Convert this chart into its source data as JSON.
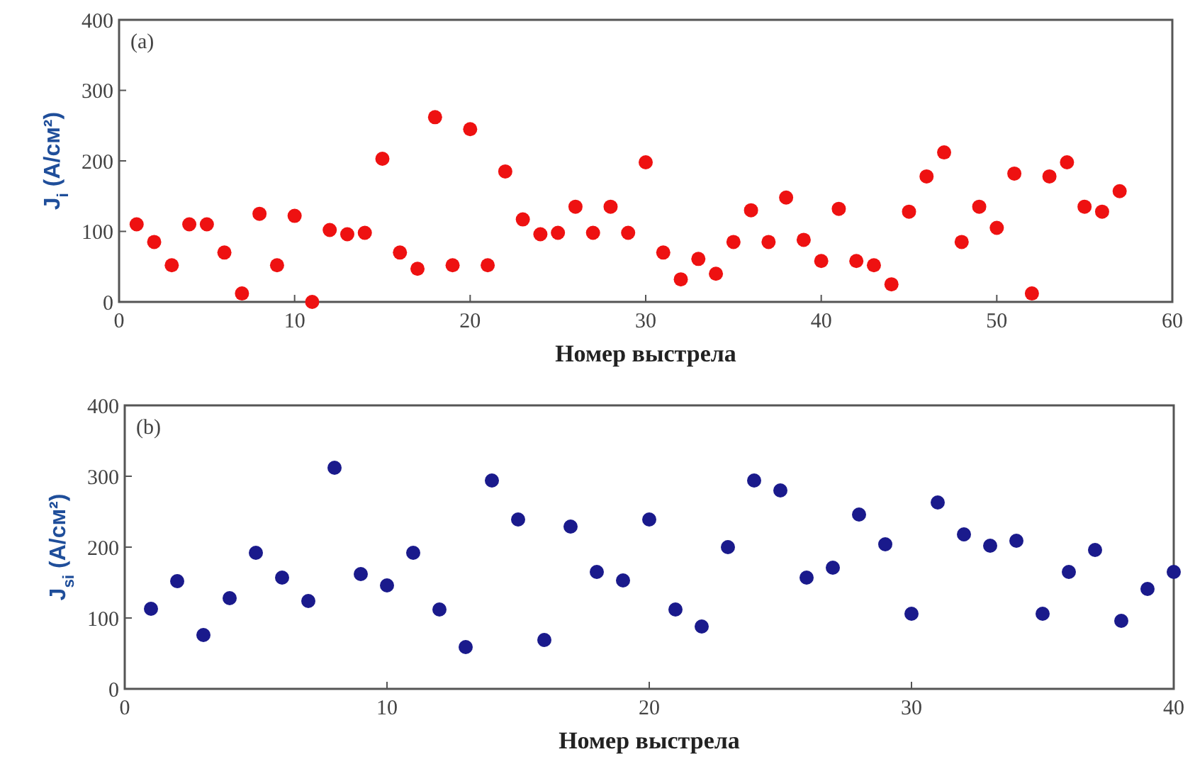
{
  "chart_data": [
    {
      "type": "scatter",
      "annotations": [
        "(a)"
      ],
      "xlabel": "Номер выстрела",
      "ylabel": "J$_{i}$ (A/см²)",
      "xlim": [
        0,
        60
      ],
      "xticks": [
        0,
        10,
        20,
        30,
        40,
        50,
        60
      ],
      "ylim": [
        0,
        400
      ],
      "yticks": [
        0,
        100,
        200,
        300,
        400
      ],
      "marker": "circle",
      "grid": false,
      "x": [
        1,
        2,
        3,
        4,
        5,
        6,
        7,
        8,
        9,
        10,
        11,
        12,
        13,
        14,
        15,
        16,
        17,
        18,
        19,
        20,
        21,
        22,
        23,
        24,
        25,
        26,
        27,
        28,
        29,
        30,
        31,
        32,
        33,
        34,
        35,
        36,
        37,
        38,
        39,
        40,
        41,
        42,
        43,
        44,
        45,
        46,
        47,
        48,
        49,
        50,
        51,
        52,
        53,
        54,
        55,
        56,
        57
      ],
      "series": [
        {
          "color": "#ee1111",
          "values": [
            110,
            85,
            52,
            110,
            110,
            70,
            12,
            125,
            52,
            122,
            0,
            102,
            96,
            98,
            203,
            70,
            47,
            262,
            52,
            245,
            52,
            185,
            117,
            96,
            98,
            135,
            98,
            135,
            98,
            198,
            70,
            32,
            61,
            40,
            85,
            130,
            85,
            148,
            88,
            58,
            132,
            58,
            52,
            25,
            128,
            178,
            212,
            85,
            135,
            105,
            182,
            12,
            178,
            198,
            135,
            128,
            157
          ]
        }
      ]
    },
    {
      "type": "scatter",
      "annotations": [
        "(b)"
      ],
      "xlabel": "Номер выстрела",
      "ylabel": "J$_{si}$ (A/см²)",
      "xlim": [
        0,
        40
      ],
      "xticks": [
        0,
        10,
        20,
        30,
        40
      ],
      "ylim": [
        0,
        400
      ],
      "yticks": [
        0,
        100,
        200,
        300,
        400
      ],
      "marker": "circle",
      "grid": false,
      "x": [
        1,
        2,
        3,
        4,
        5,
        6,
        7,
        8,
        9,
        10,
        11,
        12,
        13,
        14,
        15,
        16,
        17,
        18,
        19,
        20,
        21,
        22,
        23,
        24,
        25,
        26,
        27,
        28,
        29,
        30,
        31,
        32,
        33,
        34,
        35,
        36,
        37,
        38,
        39,
        40
      ],
      "series": [
        {
          "color": "#1a1a8c",
          "values": [
            113,
            152,
            76,
            128,
            192,
            157,
            124,
            312,
            162,
            146,
            192,
            112,
            59,
            294,
            239,
            69,
            229,
            165,
            153,
            239,
            112,
            88,
            200,
            294,
            280,
            157,
            171,
            246,
            204,
            106,
            263,
            218,
            202,
            209,
            106,
            165,
            196,
            96,
            141,
            165
          ]
        }
      ]
    }
  ]
}
